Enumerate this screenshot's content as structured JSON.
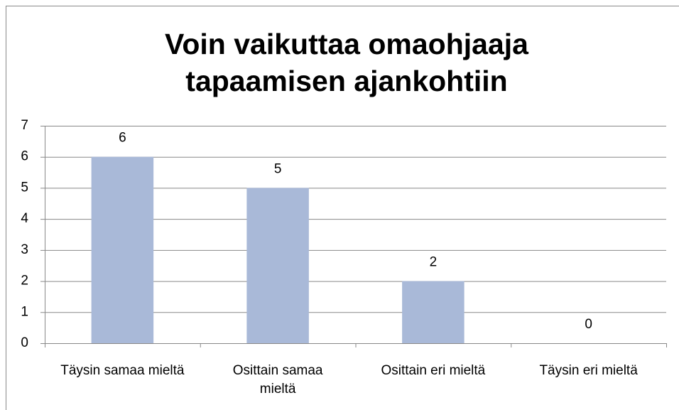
{
  "chart_data": {
    "type": "bar",
    "title": "Voin vaikuttaa omaohjaaja tapaamisen ajankohtiin",
    "categories": [
      "Täysin samaa mieltä",
      "Osittain samaa mieltä",
      "Osittain eri mieltä",
      "Täysin eri mieltä"
    ],
    "values": [
      6,
      5,
      2,
      0
    ],
    "color": "#a9b9d8",
    "ylim": [
      0,
      7
    ],
    "yticks": [
      0,
      1,
      2,
      3,
      4,
      5,
      6,
      7
    ],
    "grid": true
  }
}
